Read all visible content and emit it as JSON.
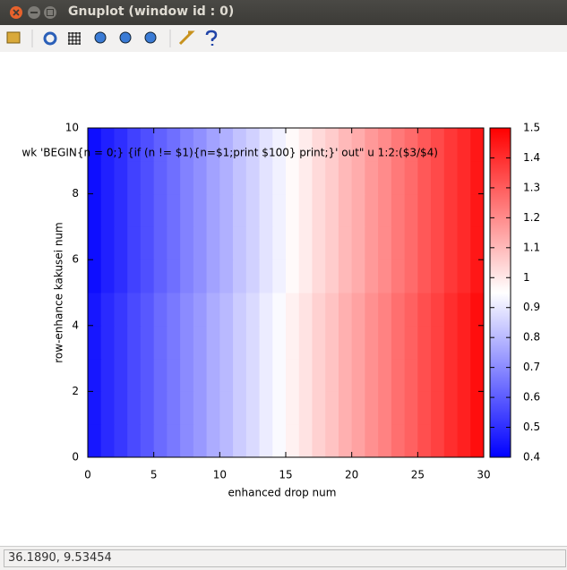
{
  "window": {
    "title": "Gnuplot (window id : 0)",
    "status": "36.1890,  9.53454"
  },
  "chart_data": {
    "type": "heatmap",
    "key_title": "wk 'BEGIN{n = 0;} {if (n != $1){n=$1;print $100} print;}' out\" u 1:2:($3/$4)",
    "xlabel": "enhanced drop num",
    "ylabel": "row-enhance kakusei num",
    "xlim": [
      0,
      30
    ],
    "ylim": [
      0,
      10
    ],
    "xticks": [
      0,
      5,
      10,
      15,
      20,
      25,
      30
    ],
    "yticks": [
      0,
      2,
      4,
      6,
      8,
      10
    ],
    "cblim": [
      0.4,
      1.5
    ],
    "cbticks": [
      0.4,
      0.5,
      0.6,
      0.7,
      0.8,
      0.9,
      1,
      1.1,
      1.2,
      1.3,
      1.4,
      1.5
    ],
    "palette": [
      "#0000ff",
      "#ffffff",
      "#ff0000"
    ],
    "z": [
      [
        0.45,
        0.49,
        0.52,
        0.56,
        0.59,
        0.63,
        0.66,
        0.7,
        0.73,
        0.77,
        0.8,
        0.84,
        0.87,
        0.91,
        0.94,
        0.98,
        1.01,
        1.05,
        1.08,
        1.12,
        1.15,
        1.19,
        1.22,
        1.26,
        1.29,
        1.33,
        1.36,
        1.4,
        1.43,
        1.47
      ],
      [
        0.45,
        0.49,
        0.52,
        0.56,
        0.59,
        0.63,
        0.66,
        0.7,
        0.73,
        0.77,
        0.8,
        0.84,
        0.87,
        0.91,
        0.94,
        0.98,
        1.01,
        1.05,
        1.08,
        1.12,
        1.15,
        1.19,
        1.22,
        1.26,
        1.29,
        1.33,
        1.36,
        1.4,
        1.43,
        1.47
      ],
      [
        0.45,
        0.49,
        0.52,
        0.56,
        0.59,
        0.63,
        0.66,
        0.7,
        0.73,
        0.77,
        0.8,
        0.84,
        0.87,
        0.91,
        0.94,
        0.98,
        1.01,
        1.05,
        1.08,
        1.12,
        1.15,
        1.19,
        1.22,
        1.26,
        1.29,
        1.33,
        1.36,
        1.4,
        1.43,
        1.47
      ],
      [
        0.45,
        0.49,
        0.52,
        0.56,
        0.59,
        0.63,
        0.66,
        0.7,
        0.73,
        0.77,
        0.8,
        0.84,
        0.87,
        0.91,
        0.94,
        0.98,
        1.01,
        1.05,
        1.08,
        1.12,
        1.15,
        1.19,
        1.22,
        1.26,
        1.29,
        1.33,
        1.36,
        1.4,
        1.43,
        1.47
      ],
      [
        0.45,
        0.49,
        0.52,
        0.56,
        0.59,
        0.63,
        0.66,
        0.7,
        0.73,
        0.77,
        0.8,
        0.84,
        0.87,
        0.91,
        0.94,
        0.98,
        1.01,
        1.05,
        1.08,
        1.12,
        1.15,
        1.19,
        1.22,
        1.26,
        1.29,
        1.33,
        1.36,
        1.4,
        1.43,
        1.47
      ],
      [
        0.43,
        0.47,
        0.5,
        0.54,
        0.57,
        0.61,
        0.64,
        0.68,
        0.71,
        0.75,
        0.78,
        0.82,
        0.85,
        0.89,
        0.92,
        0.96,
        0.99,
        1.03,
        1.06,
        1.1,
        1.13,
        1.17,
        1.2,
        1.24,
        1.27,
        1.31,
        1.34,
        1.38,
        1.41,
        1.45
      ],
      [
        0.43,
        0.47,
        0.5,
        0.54,
        0.57,
        0.61,
        0.64,
        0.68,
        0.71,
        0.75,
        0.78,
        0.82,
        0.85,
        0.89,
        0.92,
        0.96,
        0.99,
        1.03,
        1.06,
        1.1,
        1.13,
        1.17,
        1.2,
        1.24,
        1.27,
        1.31,
        1.34,
        1.38,
        1.41,
        1.45
      ],
      [
        0.43,
        0.47,
        0.5,
        0.54,
        0.57,
        0.61,
        0.64,
        0.68,
        0.71,
        0.75,
        0.78,
        0.82,
        0.85,
        0.89,
        0.92,
        0.96,
        0.99,
        1.03,
        1.06,
        1.1,
        1.13,
        1.17,
        1.2,
        1.24,
        1.27,
        1.31,
        1.34,
        1.38,
        1.41,
        1.45
      ],
      [
        0.43,
        0.47,
        0.5,
        0.54,
        0.57,
        0.61,
        0.64,
        0.68,
        0.71,
        0.75,
        0.78,
        0.82,
        0.85,
        0.89,
        0.92,
        0.96,
        0.99,
        1.03,
        1.06,
        1.1,
        1.13,
        1.17,
        1.2,
        1.24,
        1.27,
        1.31,
        1.34,
        1.38,
        1.41,
        1.45
      ],
      [
        0.43,
        0.47,
        0.5,
        0.54,
        0.57,
        0.61,
        0.64,
        0.68,
        0.71,
        0.75,
        0.78,
        0.82,
        0.85,
        0.89,
        0.92,
        0.96,
        0.99,
        1.03,
        1.06,
        1.1,
        1.13,
        1.17,
        1.2,
        1.24,
        1.27,
        1.31,
        1.34,
        1.38,
        1.41,
        1.45
      ]
    ]
  }
}
